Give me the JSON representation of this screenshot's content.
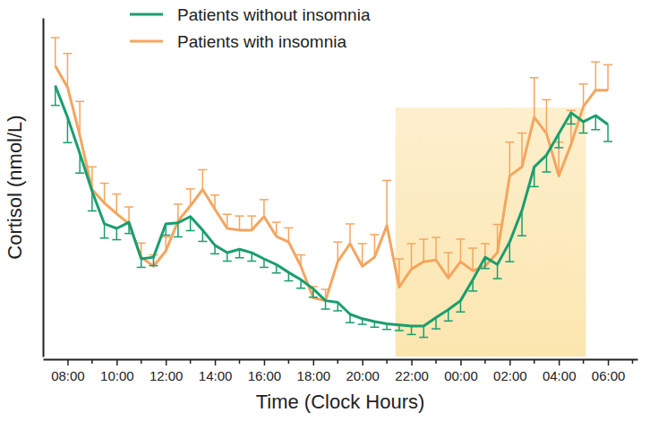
{
  "chart_data": {
    "type": "line",
    "x_label": "Time (Clock Hours)",
    "y_label": "Cortisol (nmol/L)",
    "x": [
      7.5,
      8,
      8.5,
      9,
      9.5,
      10,
      10.5,
      11,
      11.5,
      12,
      12.5,
      13,
      13.5,
      14,
      14.5,
      15,
      15.5,
      16,
      16.5,
      17,
      17.5,
      18,
      18.5,
      19,
      19.5,
      20,
      20.5,
      21,
      21.5,
      22,
      22.5,
      23,
      23.5,
      24,
      24.5,
      25,
      25.5,
      26,
      26.5,
      27,
      27.5,
      28,
      28.5,
      29,
      29.5,
      30
    ],
    "series": [
      {
        "name": "Patients without insomnia",
        "color": "#1a9e6e",
        "values": [
          480,
          424,
          360,
          293,
          235,
          227,
          238,
          173,
          176,
          235,
          237,
          248,
          224,
          197,
          184,
          190,
          184,
          173,
          163,
          149,
          136,
          120,
          99,
          96,
          75,
          67,
          62,
          58,
          56,
          54,
          54,
          69,
          83,
          99,
          136,
          176,
          163,
          203,
          259,
          336,
          357,
          395,
          432,
          416,
          427,
          411
        ],
        "errors": [
          35,
          45,
          35,
          35,
          25,
          20,
          20,
          15,
          15,
          20,
          25,
          25,
          20,
          15,
          15,
          15,
          15,
          15,
          15,
          15,
          15,
          15,
          15,
          15,
          15,
          10,
          10,
          10,
          10,
          15,
          20,
          20,
          20,
          20,
          20,
          20,
          25,
          35,
          45,
          35,
          30,
          25,
          20,
          20,
          25,
          30
        ]
      },
      {
        "name": "Patients with insomnia",
        "color": "#f4a55e",
        "values": [
          515,
          477,
          392,
          296,
          272,
          253,
          235,
          176,
          160,
          187,
          240,
          267,
          296,
          261,
          227,
          224,
          224,
          248,
          213,
          203,
          160,
          104,
          99,
          168,
          200,
          160,
          176,
          232,
          123,
          155,
          168,
          171,
          139,
          168,
          152,
          160,
          184,
          320,
          336,
          424,
          395,
          320,
          376,
          443,
          472,
          472
        ],
        "errors": [
          50,
          60,
          60,
          40,
          35,
          35,
          30,
          25,
          20,
          25,
          30,
          30,
          35,
          25,
          25,
          25,
          25,
          30,
          25,
          25,
          20,
          20,
          20,
          35,
          35,
          40,
          40,
          80,
          50,
          45,
          40,
          40,
          45,
          40,
          40,
          40,
          50,
          60,
          60,
          70,
          60,
          60,
          60,
          40,
          50,
          45
        ]
      }
    ],
    "xlim": [
      7,
      31.2
    ],
    "ylim": [
      0,
      600
    ],
    "xticks": [
      {
        "value": 8,
        "label": "08:00"
      },
      {
        "value": 10,
        "label": "10:00"
      },
      {
        "value": 12,
        "label": "12:00"
      },
      {
        "value": 14,
        "label": "14:00"
      },
      {
        "value": 16,
        "label": "16:00"
      },
      {
        "value": 18,
        "label": "18:00"
      },
      {
        "value": 20,
        "label": "20:00"
      },
      {
        "value": 22,
        "label": "22:00"
      },
      {
        "value": 24,
        "label": "00:00"
      },
      {
        "value": 26,
        "label": "02:00"
      },
      {
        "value": 28,
        "label": "04:00"
      },
      {
        "value": 30,
        "label": "06:00"
      }
    ],
    "xminor_ticks": [
      9,
      11,
      13,
      15,
      17,
      19,
      21,
      23,
      25,
      27,
      29,
      31
    ],
    "highlight_x": [
      21.35,
      29.1
    ],
    "highlight_color": "#fbe3a6",
    "tick_labels": "x",
    "grid": false,
    "legend": "top"
  }
}
